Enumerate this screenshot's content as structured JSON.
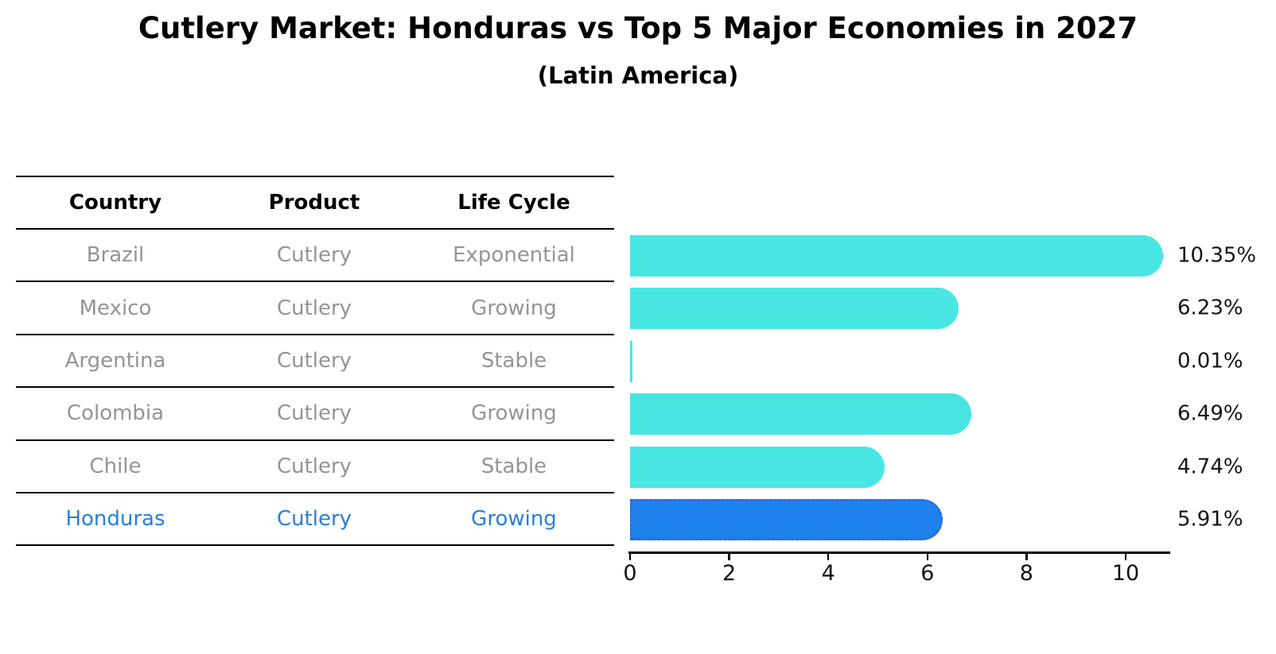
{
  "title": "Cutlery Market: Honduras vs Top 5 Major Economies in 2027",
  "subtitle": "(Latin America)",
  "table": {
    "headers": [
      "Country",
      "Product",
      "Life Cycle"
    ]
  },
  "chart_data": {
    "type": "bar",
    "orientation": "horizontal",
    "title": "Cutlery Market: Honduras vs Top 5 Major Economies in 2027",
    "subtitle": "(Latin America)",
    "categories": [
      "Brazil",
      "Mexico",
      "Argentina",
      "Colombia",
      "Chile",
      "Honduras"
    ],
    "values": [
      10.35,
      6.23,
      0.01,
      6.49,
      4.74,
      5.91
    ],
    "rows": [
      {
        "country": "Brazil",
        "product": "Cutlery",
        "life_cycle": "Exponential",
        "value": 10.35,
        "label": "10.35%",
        "highlight": false
      },
      {
        "country": "Mexico",
        "product": "Cutlery",
        "life_cycle": "Growing",
        "value": 6.23,
        "label": "6.23%",
        "highlight": false
      },
      {
        "country": "Argentina",
        "product": "Cutlery",
        "life_cycle": "Stable",
        "value": 0.01,
        "label": "0.01%",
        "highlight": false
      },
      {
        "country": "Colombia",
        "product": "Cutlery",
        "life_cycle": "Growing",
        "value": 6.49,
        "label": "6.49%",
        "highlight": false
      },
      {
        "country": "Chile",
        "product": "Cutlery",
        "life_cycle": "Stable",
        "value": 4.74,
        "label": "4.74%",
        "highlight": false
      },
      {
        "country": "Honduras",
        "product": "Cutlery",
        "life_cycle": "Growing",
        "value": 5.91,
        "label": "5.91%",
        "highlight": true
      }
    ],
    "x_ticks": [
      0,
      2,
      4,
      6,
      8,
      10
    ],
    "xlim": [
      0,
      10.9
    ],
    "grid": false,
    "legend": null,
    "colors": {
      "bar": "#48E6E3",
      "highlight_bar": "#1E82EC",
      "highlight_bar_border": "#3566D6",
      "highlight_text": "#2A7DDB",
      "table_text": "#949494",
      "header_text": "#000000",
      "axis": "#000000",
      "value_label_text": "#141414"
    }
  }
}
